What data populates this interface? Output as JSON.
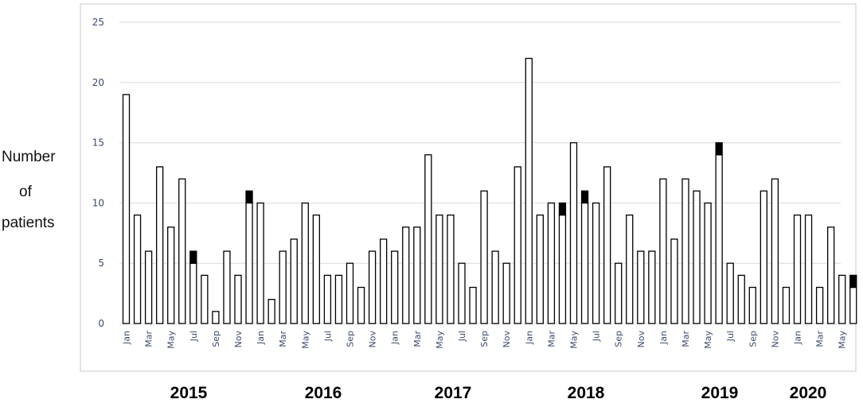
{
  "chart_data": {
    "type": "bar",
    "ylabel": [
      "Number",
      "of",
      "patients"
    ],
    "ylim": [
      0,
      25
    ],
    "yticks": [
      0,
      5,
      10,
      15,
      20,
      25
    ],
    "grid": true,
    "month_labels": [
      "Jan",
      "Mar",
      "May",
      "Jul",
      "Sep",
      "Nov",
      "Jan",
      "Mar",
      "May",
      "Jul",
      "Sep",
      "Nov",
      "Jan",
      "Mar",
      "May",
      "Jul",
      "Sep",
      "Nov",
      "Jan",
      "Mar",
      "May",
      "Jul",
      "Sep",
      "Nov",
      "Jan",
      "Mar",
      "May",
      "Jul",
      "Sep",
      "Nov",
      "Jan",
      "Mar",
      "May"
    ],
    "years": [
      "2015",
      "2016",
      "2017",
      "2018",
      "2019",
      "2020"
    ],
    "series": [
      {
        "values": [
          19,
          9,
          6,
          13,
          8,
          12,
          5,
          4,
          1,
          6,
          4,
          10,
          10,
          2,
          6,
          7,
          10,
          9,
          4,
          4,
          5,
          3,
          6,
          7,
          6,
          8,
          8,
          14,
          9,
          9,
          5,
          3,
          11,
          6,
          5,
          13,
          22,
          9,
          10,
          9,
          15,
          10,
          10,
          13,
          5,
          9,
          6,
          6,
          12,
          7,
          12,
          11,
          10,
          14,
          5,
          4,
          3,
          11,
          12,
          3,
          9,
          9,
          3,
          8,
          4,
          3
        ]
      },
      {
        "values": [
          0,
          0,
          0,
          0,
          0,
          0,
          1,
          0,
          0,
          0,
          0,
          1,
          0,
          0,
          0,
          0,
          0,
          0,
          0,
          0,
          0,
          0,
          0,
          0,
          0,
          0,
          0,
          0,
          0,
          0,
          0,
          0,
          0,
          0,
          0,
          0,
          0,
          0,
          0,
          1,
          0,
          1,
          0,
          0,
          0,
          0,
          0,
          0,
          0,
          0,
          0,
          0,
          0,
          1,
          0,
          0,
          0,
          0,
          0,
          0,
          0,
          0,
          0,
          0,
          0,
          1
        ]
      }
    ]
  }
}
